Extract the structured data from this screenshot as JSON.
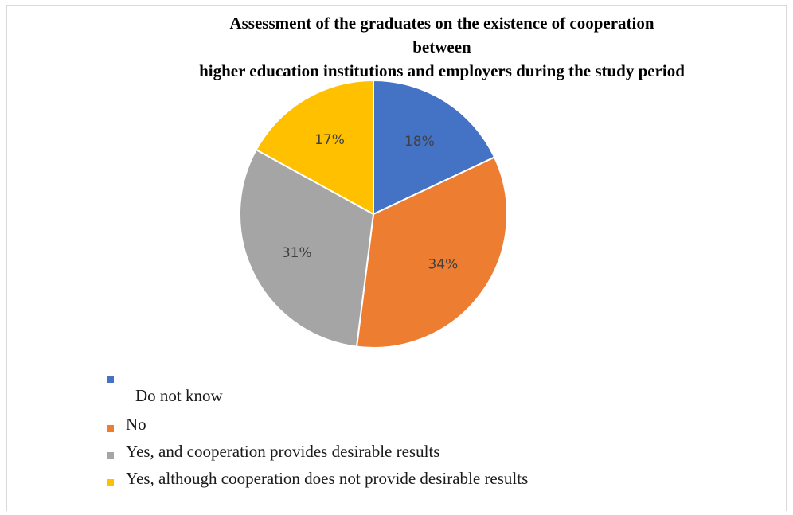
{
  "chart_data": {
    "type": "pie",
    "title_lines": [
      "Assessment of the graduates on the existence of cooperation",
      "between",
      "higher education institutions and employers during the study period"
    ],
    "slices": [
      {
        "label": "Do not know",
        "value": 18,
        "display": "18%",
        "color": "#4472c4"
      },
      {
        "label": "No",
        "value": 34,
        "display": "34%",
        "color": "#ed7d31"
      },
      {
        "label": "Yes, and cooperation provides desirable results",
        "value": 31,
        "display": "31%",
        "color": "#a5a5a5"
      },
      {
        "label": "Yes, although cooperation does not provide desirable results",
        "value": 17,
        "display": "17%",
        "color": "#ffc000"
      }
    ],
    "start_angle": "12 o'clock",
    "direction": "clockwise",
    "legend_position": "bottom-left"
  }
}
